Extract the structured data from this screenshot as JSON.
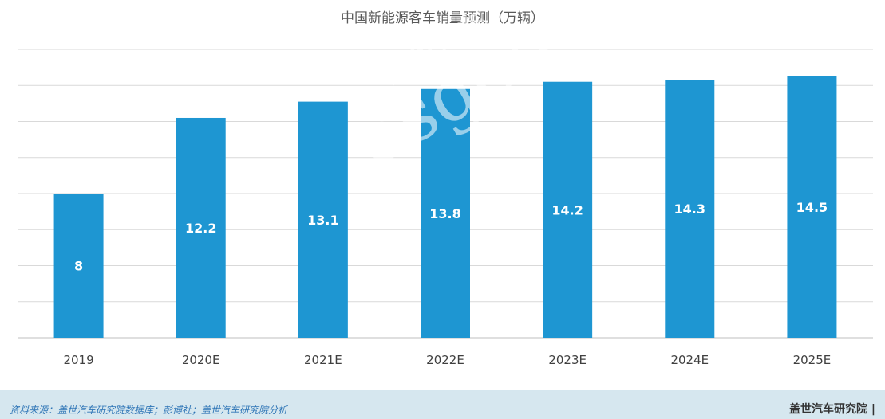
{
  "chart_data": {
    "type": "bar",
    "title": "中国新能源客车销量预测（万辆）",
    "categories": [
      "2019",
      "2020E",
      "2021E",
      "2022E",
      "2023E",
      "2024E",
      "2025E"
    ],
    "values": [
      8,
      12.2,
      13.1,
      13.8,
      14.2,
      14.3,
      14.5
    ],
    "ylim": [
      0,
      16
    ],
    "grid": true,
    "xlabel": "",
    "ylabel": "",
    "bar_color": "#1e96d2",
    "data_labels": true
  },
  "footer": {
    "source": "资料来源：盖世汽车研究院数据库；彭博社；盖世汽车研究院分析",
    "brand": "盖世汽车研究院 |"
  },
  "watermark": {
    "text_cn": "盖世汽车",
    "text_en": "asgoo"
  }
}
